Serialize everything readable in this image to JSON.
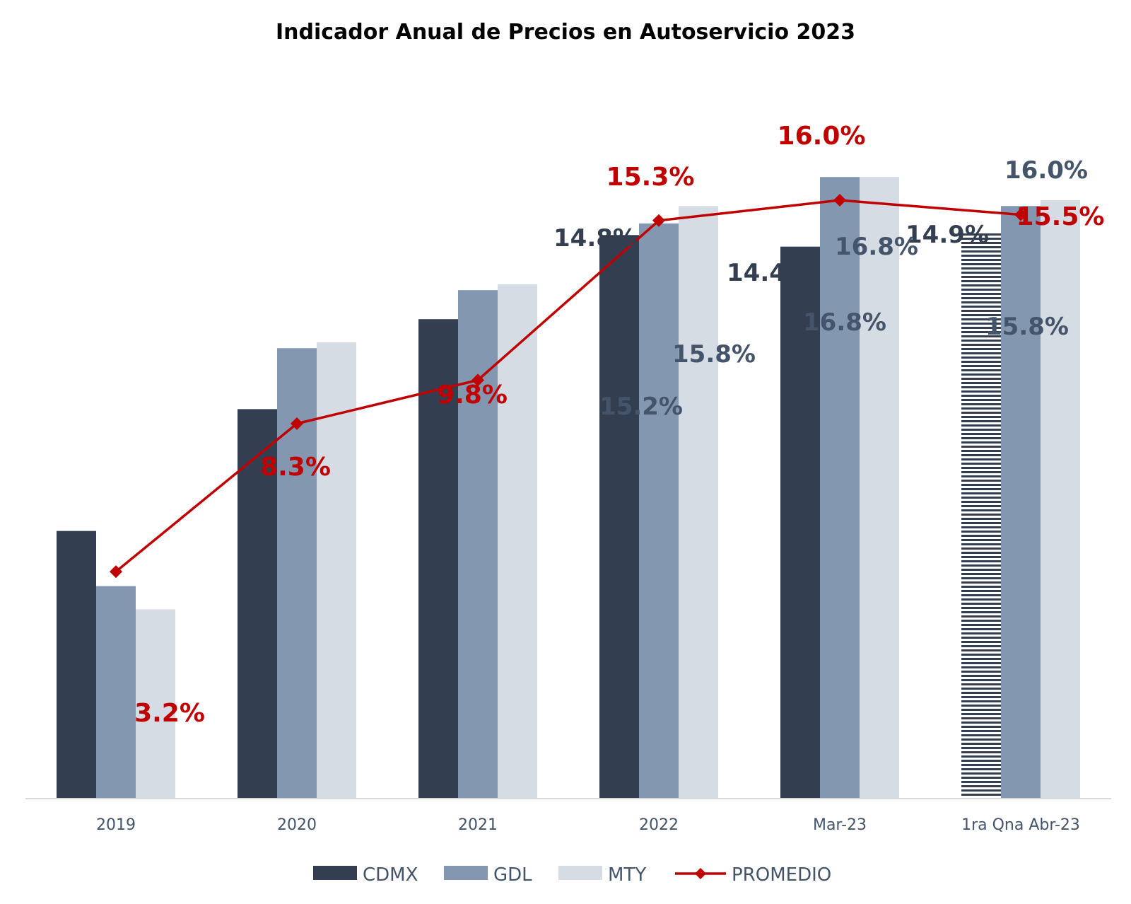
{
  "chart_data": {
    "type": "bar",
    "title": "Indicador Anual de Precios en Autoservicio 2023",
    "categories": [
      "2019",
      "2020",
      "2021",
      "2022",
      "Mar-23",
      "1ra Qna Abr-23"
    ],
    "series": [
      {
        "name": "CDMX",
        "type": "bar",
        "color": "#333f50",
        "values": [
          4.6,
          8.8,
          11.9,
          14.8,
          14.4,
          14.9
        ],
        "labels": [
          "",
          "",
          "",
          "14.8%",
          "14.4%",
          "14.9%"
        ]
      },
      {
        "name": "GDL",
        "type": "bar",
        "color": "#8497b0",
        "values": [
          2.7,
          10.9,
          12.9,
          15.2,
          16.8,
          15.8
        ],
        "labels": [
          "",
          "",
          "",
          "15.2%",
          "16.8%",
          "15.8%"
        ]
      },
      {
        "name": "MTY",
        "type": "bar",
        "color": "#d6dce4",
        "values": [
          1.9,
          11.1,
          13.1,
          15.8,
          16.8,
          16.0
        ],
        "labels": [
          "",
          "",
          "",
          "15.8%",
          "16.8%",
          "16.0%"
        ]
      },
      {
        "name": "PROMEDIO",
        "type": "line",
        "color": "#c00000",
        "marker": "diamond",
        "values": [
          3.2,
          8.3,
          9.8,
          15.3,
          16.0,
          15.5
        ],
        "labels": [
          "3.2%",
          "8.3%",
          "9.8%",
          "15.3%",
          "16.0%",
          "15.5%"
        ]
      }
    ],
    "ylim": [
      -4.6,
      19.0
    ],
    "grid": false,
    "legend_position": "bottom",
    "xlabel": "",
    "ylabel": ""
  }
}
